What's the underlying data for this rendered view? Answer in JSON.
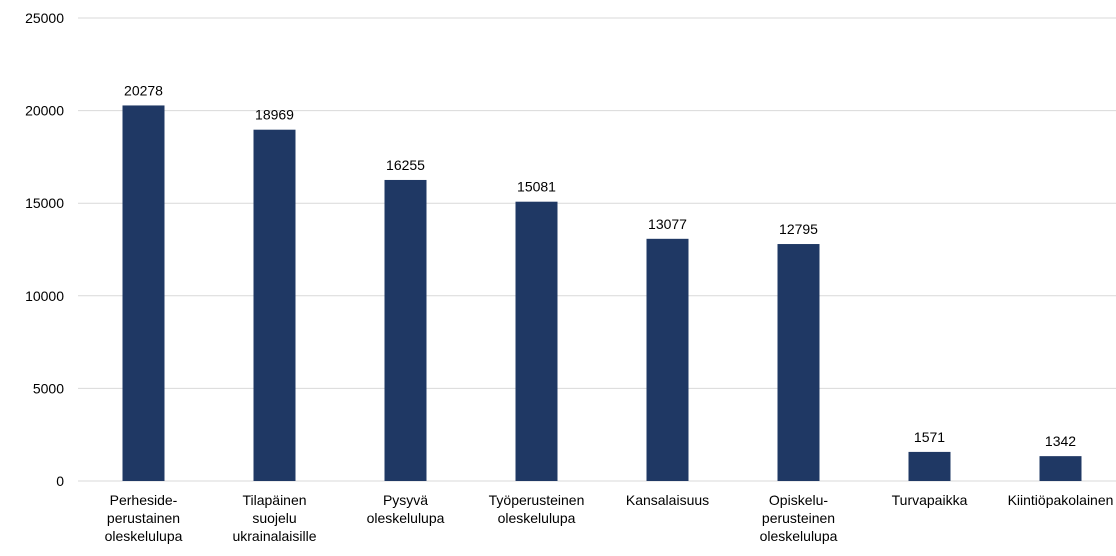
{
  "chart_data": {
    "type": "bar",
    "categories": [
      "Perheside-\nperustainen\noleskelulupa",
      "Tilapäinen\nsuojelu\nukrainalaisille",
      "Pysyvä\noleskelulupa",
      "Työperusteinen\noleskelulupa",
      "Kansalaisuus",
      "Opiskelu-\nperusteinen\noleskelulupa",
      "Turvapaikka",
      "Kiintiöpakolainen"
    ],
    "values": [
      20278,
      18969,
      16255,
      15081,
      13077,
      12795,
      1571,
      1342
    ],
    "color": "#1f3864",
    "ylim": [
      0,
      25000
    ],
    "yticks": [
      0,
      5000,
      10000,
      15000,
      20000,
      25000
    ],
    "grid": true
  }
}
